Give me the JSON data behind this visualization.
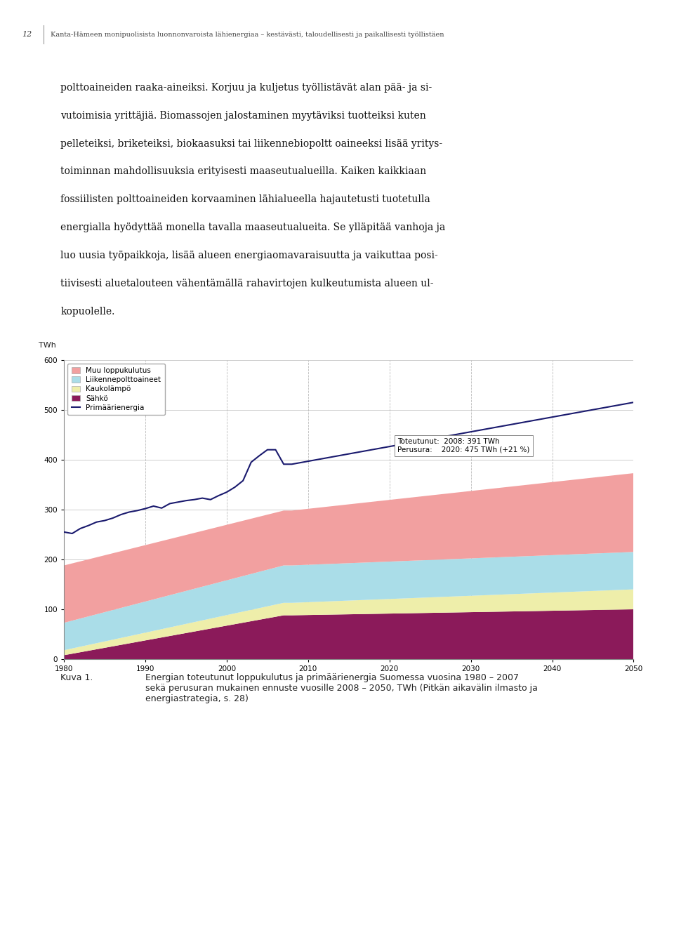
{
  "header_num": "12",
  "header_text": "Kanta-Hämeen monipuolisista luonnonvaroista lähienergiaa – kestävästi, taloudellisesti ja paikallisesti työllistäen",
  "body_lines": [
    "polttoaineiden raaka-aineiksi. Korjuu ja kuljetus työllistävät alan pää- ja si-",
    "vutoimisia yrittäjiä. Biomassojen jalostaminen myytäviksi tuotteiksi kuten",
    "pelleteiksi, briketeiksi, biokaasuksi tai liikennebiopoltt oaineeksi lisää yritys-",
    "toiminnan mahdollisuuksia erityisesti maaseutualueilla. Kaiken kaikkiaan",
    "fossiilisten polttoaineiden korvaaminen lähialueella hajautetusti tuotetulla",
    "energialla hyödyttää monella tavalla maaseutualueita. Se ylläpitää vanhoja ja",
    "luo uusia työpaikkoja, lisää alueen energiaomavaraisuutta ja vaikuttaa posi-",
    "tiivisesti aluetalouteen vähentämällä rahavirtojen kulkeutumista alueen ul-",
    "kopuolelle."
  ],
  "ylabel": "TWh",
  "ylim": [
    0,
    600
  ],
  "yticks": [
    0,
    100,
    200,
    300,
    400,
    500,
    600
  ],
  "xlim": [
    1980,
    2050
  ],
  "xticks": [
    1980,
    1990,
    2000,
    2010,
    2020,
    2030,
    2040,
    2050
  ],
  "colors": {
    "muu": "#F2A0A0",
    "liikenne": "#AADDE8",
    "kaukolampo": "#EEEEAA",
    "sahko": "#8B1A5A",
    "primaari_line": "#1A1A6E"
  },
  "caption_label": "Kuva 1.",
  "caption_text": "Energian toteutunut loppukulutus ja primäärienergia Suomessa vuosina 1980 – 2007\nsekä perusuran mukainen ennuste vuosille 2008 – 2050, TWh (Pitkän aikavälin ilmasto ja\nenergiastrategia, s. 28)",
  "bg": "#ffffff"
}
